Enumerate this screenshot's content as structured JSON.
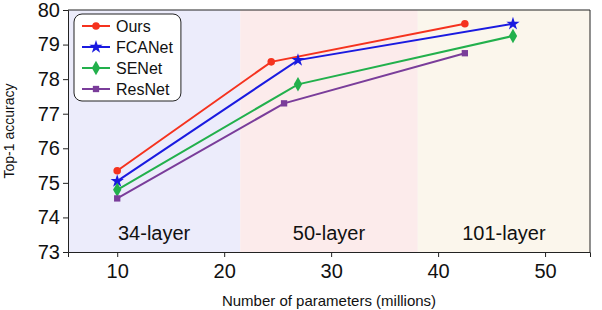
{
  "chart_data": {
    "type": "line",
    "x_label": "Number of parameters (millions)",
    "y_label": "Top-1 accuracy",
    "xlim": [
      5.4,
      54.2
    ],
    "xticks": [
      10,
      20,
      30,
      40,
      50
    ],
    "ylim": [
      73,
      80
    ],
    "yticks": [
      73,
      74,
      75,
      76,
      77,
      78,
      79,
      80
    ],
    "grid": false,
    "legend": "upper left",
    "annotations": [
      {
        "label": "34-layer",
        "x0": 5.4,
        "x1": 21.5
      },
      {
        "label": "50-layer",
        "x0": 21.5,
        "x1": 38.1
      },
      {
        "label": "101-layer",
        "x0": 38.1,
        "x1": 54.2
      }
    ],
    "series": [
      {
        "name": "Ours",
        "color": "#f5321e",
        "marker": "circle",
        "x": [
          10,
          24.4,
          42.5
        ],
        "values": [
          75.35,
          78.5,
          79.6
        ]
      },
      {
        "name": "FCANet",
        "color": "#1a1ae0",
        "marker": "star",
        "x": [
          10,
          26.9,
          47
        ],
        "values": [
          75.05,
          78.55,
          79.6
        ]
      },
      {
        "name": "SENet",
        "color": "#22b04c",
        "marker": "diamond",
        "x": [
          10,
          26.9,
          47
        ],
        "values": [
          74.8,
          77.85,
          79.25
        ]
      },
      {
        "name": "ResNet",
        "color": "#7a3d9a",
        "marker": "square",
        "x": [
          10,
          25.6,
          42.5
        ],
        "values": [
          74.55,
          77.3,
          78.75
        ]
      }
    ]
  }
}
